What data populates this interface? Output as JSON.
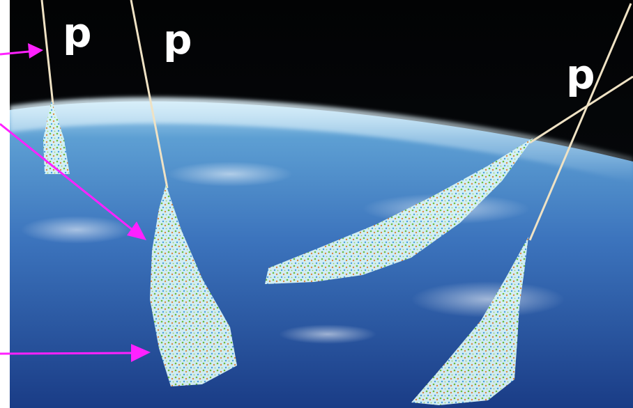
{
  "labels": {
    "particle_1": "p",
    "particle_2": "p",
    "particle_3": "p"
  },
  "colors": {
    "space": "#050608",
    "atmosphere_glow": "#bfe3f3",
    "ocean_light": "#4f8fc9",
    "ocean_dark": "#1d3f86",
    "track": "#efe2c4",
    "shower_core": "#d8f6f8",
    "shower_speckle_green": "#6fbf3a",
    "shower_speckle_orange": "#e0893a",
    "shower_speckle_blue": "#4aa0e0",
    "arrow": "#ff21ff",
    "label": "#ffffff"
  },
  "icons": [
    "arrow-right-icon",
    "arrow-down-right-icon"
  ]
}
